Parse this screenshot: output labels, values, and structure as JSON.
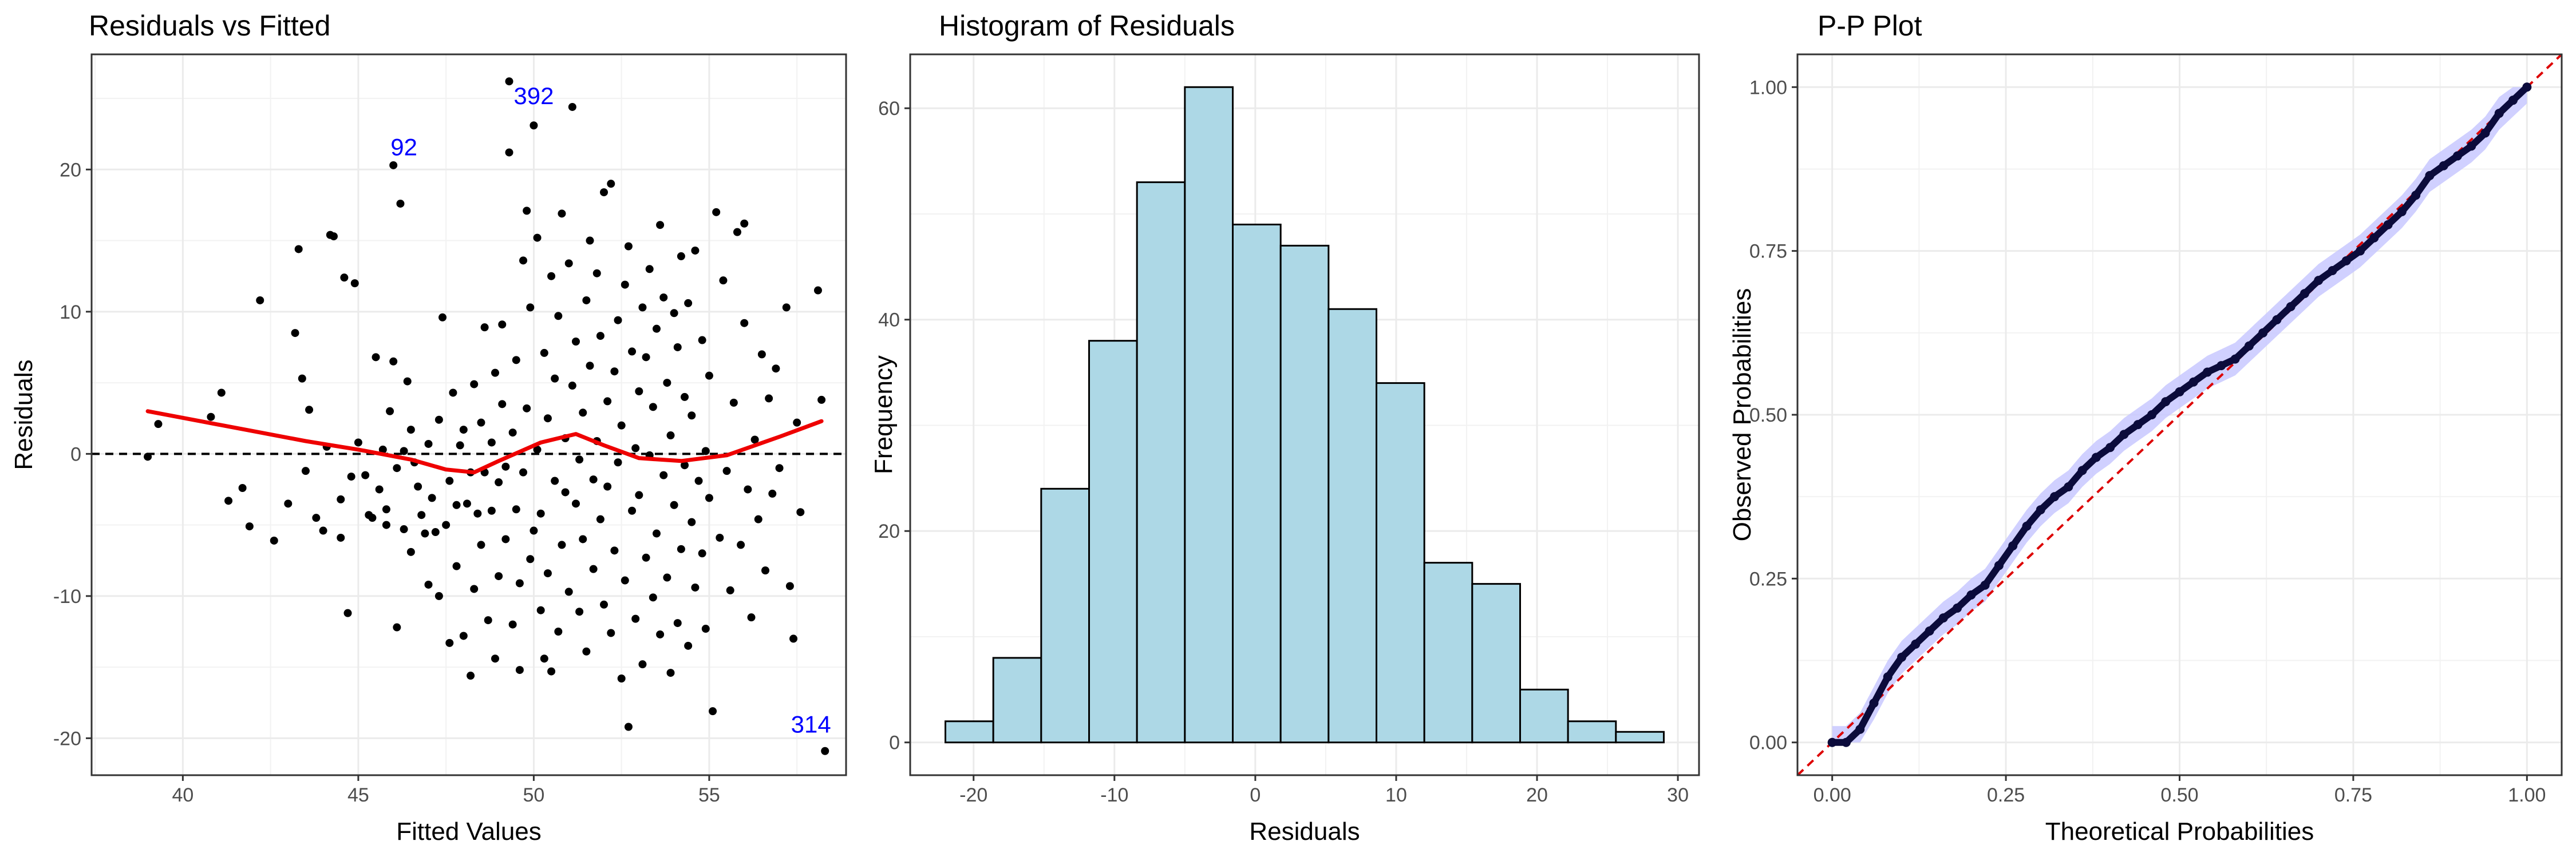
{
  "chart_data": [
    {
      "type": "scatter",
      "title": "Residuals vs Fitted",
      "xlabel": "Fitted Values",
      "ylabel": "Residuals",
      "xlim": [
        37.4,
        58.9
      ],
      "ylim": [
        -22.6,
        28.1
      ],
      "xticks": [
        40,
        45,
        50,
        55
      ],
      "yticks": [
        -20,
        -10,
        0,
        10,
        20
      ],
      "reference_line": {
        "y": 0,
        "style": "dashed",
        "color": "#000000"
      },
      "smooth": {
        "color": "#ee0000",
        "points": [
          [
            39.0,
            3.0
          ],
          [
            40.5,
            2.3
          ],
          [
            42.0,
            1.6
          ],
          [
            43.5,
            0.9
          ],
          [
            45.0,
            0.3
          ],
          [
            46.5,
            -0.4
          ],
          [
            47.5,
            -1.1
          ],
          [
            48.3,
            -1.3
          ],
          [
            49.0,
            -0.5
          ],
          [
            50.2,
            0.8
          ],
          [
            51.2,
            1.4
          ],
          [
            52.0,
            0.6
          ],
          [
            53.0,
            -0.3
          ],
          [
            54.2,
            -0.5
          ],
          [
            55.5,
            -0.1
          ],
          [
            57.0,
            1.2
          ],
          [
            58.2,
            2.3
          ]
        ]
      },
      "points": [
        [
          39.0,
          -0.2
        ],
        [
          39.3,
          2.1
        ],
        [
          40.8,
          2.6
        ],
        [
          41.1,
          4.3
        ],
        [
          41.3,
          -3.3
        ],
        [
          41.7,
          -2.4
        ],
        [
          41.9,
          -5.1
        ],
        [
          42.2,
          10.8
        ],
        [
          42.6,
          -6.1
        ],
        [
          43.0,
          -3.5
        ],
        [
          43.2,
          8.5
        ],
        [
          43.3,
          14.4
        ],
        [
          43.4,
          5.3
        ],
        [
          43.5,
          -1.2
        ],
        [
          43.6,
          3.1
        ],
        [
          43.8,
          -4.5
        ],
        [
          44.0,
          -5.4
        ],
        [
          44.1,
          0.5
        ],
        [
          44.2,
          15.4
        ],
        [
          44.3,
          15.3
        ],
        [
          44.5,
          -3.2
        ],
        [
          44.5,
          -5.9
        ],
        [
          44.6,
          12.4
        ],
        [
          44.7,
          -11.2
        ],
        [
          44.8,
          -1.6
        ],
        [
          44.9,
          12.0
        ],
        [
          45.0,
          0.8
        ],
        [
          45.2,
          -1.5
        ],
        [
          45.3,
          -4.3
        ],
        [
          45.4,
          -4.5
        ],
        [
          45.5,
          6.8
        ],
        [
          45.6,
          -2.5
        ],
        [
          45.7,
          0.3
        ],
        [
          45.8,
          -5.0
        ],
        [
          45.8,
          -3.9
        ],
        [
          45.9,
          3.0
        ],
        [
          46.0,
          20.3
        ],
        [
          46.0,
          6.5
        ],
        [
          46.1,
          -1.0
        ],
        [
          46.1,
          -12.2
        ],
        [
          46.2,
          17.6
        ],
        [
          46.3,
          -5.3
        ],
        [
          46.3,
          0.2
        ],
        [
          46.4,
          5.1
        ],
        [
          46.5,
          -6.9
        ],
        [
          46.5,
          1.7
        ],
        [
          46.6,
          -0.6
        ],
        [
          46.7,
          -2.3
        ],
        [
          46.8,
          -4.3
        ],
        [
          46.9,
          -5.6
        ],
        [
          47.0,
          0.7
        ],
        [
          47.0,
          -9.2
        ],
        [
          47.1,
          -3.1
        ],
        [
          47.2,
          -5.5
        ],
        [
          47.3,
          2.4
        ],
        [
          47.3,
          -10.0
        ],
        [
          47.4,
          9.6
        ],
        [
          47.5,
          -5.0
        ],
        [
          47.6,
          -13.3
        ],
        [
          47.6,
          -1.9
        ],
        [
          47.7,
          4.3
        ],
        [
          47.8,
          -3.6
        ],
        [
          47.8,
          -7.9
        ],
        [
          47.9,
          0.6
        ],
        [
          48.0,
          -12.8
        ],
        [
          48.0,
          1.7
        ],
        [
          48.1,
          -3.5
        ],
        [
          48.2,
          -1.3
        ],
        [
          48.2,
          -15.6
        ],
        [
          48.3,
          -9.5
        ],
        [
          48.3,
          4.9
        ],
        [
          48.4,
          -4.2
        ],
        [
          48.5,
          -6.4
        ],
        [
          48.5,
          2.2
        ],
        [
          48.6,
          8.9
        ],
        [
          48.6,
          -1.3
        ],
        [
          48.7,
          -11.7
        ],
        [
          48.8,
          -4.0
        ],
        [
          48.8,
          0.8
        ],
        [
          48.9,
          -14.4
        ],
        [
          48.9,
          5.7
        ],
        [
          49.0,
          -2.0
        ],
        [
          49.0,
          -8.6
        ],
        [
          49.1,
          3.5
        ],
        [
          49.1,
          9.1
        ],
        [
          49.2,
          -6.0
        ],
        [
          49.2,
          -0.9
        ],
        [
          49.3,
          26.2
        ],
        [
          49.3,
          21.2
        ],
        [
          49.4,
          -12.0
        ],
        [
          49.4,
          1.5
        ],
        [
          49.5,
          -3.9
        ],
        [
          49.5,
          6.6
        ],
        [
          49.6,
          -9.1
        ],
        [
          49.6,
          -15.2
        ],
        [
          49.7,
          13.6
        ],
        [
          49.7,
          -1.3
        ],
        [
          49.8,
          17.1
        ],
        [
          49.8,
          3.2
        ],
        [
          49.9,
          -7.4
        ],
        [
          49.9,
          10.3
        ],
        [
          50.0,
          23.1
        ],
        [
          50.0,
          -5.4
        ],
        [
          50.1,
          0.3
        ],
        [
          50.1,
          15.2
        ],
        [
          50.2,
          -11.0
        ],
        [
          50.2,
          -4.2
        ],
        [
          50.3,
          7.1
        ],
        [
          50.3,
          -14.4
        ],
        [
          50.4,
          2.5
        ],
        [
          50.4,
          -8.4
        ],
        [
          50.5,
          12.5
        ],
        [
          50.5,
          -15.3
        ],
        [
          50.6,
          -1.9
        ],
        [
          50.6,
          5.3
        ],
        [
          50.7,
          -12.5
        ],
        [
          50.7,
          9.7
        ],
        [
          50.8,
          16.9
        ],
        [
          50.8,
          -6.4
        ],
        [
          50.9,
          -2.7
        ],
        [
          50.9,
          1.1
        ],
        [
          51.0,
          13.4
        ],
        [
          51.0,
          -9.7
        ],
        [
          51.1,
          24.4
        ],
        [
          51.1,
          4.8
        ],
        [
          51.2,
          -3.5
        ],
        [
          51.2,
          7.9
        ],
        [
          51.3,
          -11.1
        ],
        [
          51.3,
          -0.4
        ],
        [
          51.4,
          2.9
        ],
        [
          51.4,
          -6.0
        ],
        [
          51.5,
          10.8
        ],
        [
          51.5,
          -13.9
        ],
        [
          51.6,
          15.0
        ],
        [
          51.6,
          6.2
        ],
        [
          51.7,
          -8.1
        ],
        [
          51.7,
          -1.8
        ],
        [
          51.8,
          0.9
        ],
        [
          51.8,
          12.7
        ],
        [
          51.9,
          -4.6
        ],
        [
          51.9,
          8.3
        ],
        [
          52.0,
          18.4
        ],
        [
          52.0,
          -10.6
        ],
        [
          52.1,
          3.7
        ],
        [
          52.1,
          -2.3
        ],
        [
          52.2,
          19.0
        ],
        [
          52.2,
          -12.6
        ],
        [
          52.3,
          5.8
        ],
        [
          52.3,
          -6.8
        ],
        [
          52.4,
          9.4
        ],
        [
          52.4,
          -0.6
        ],
        [
          52.5,
          -15.8
        ],
        [
          52.5,
          2.0
        ],
        [
          52.6,
          11.9
        ],
        [
          52.6,
          -8.9
        ],
        [
          52.7,
          -19.2
        ],
        [
          52.7,
          14.6
        ],
        [
          52.8,
          -4.0
        ],
        [
          52.8,
          7.2
        ],
        [
          52.9,
          -11.6
        ],
        [
          52.9,
          0.4
        ],
        [
          53.0,
          4.4
        ],
        [
          53.0,
          -2.9
        ],
        [
          53.1,
          -14.8
        ],
        [
          53.1,
          10.3
        ],
        [
          53.2,
          -7.3
        ],
        [
          53.2,
          6.8
        ],
        [
          53.3,
          13.0
        ],
        [
          53.3,
          -0.1
        ],
        [
          53.4,
          -10.1
        ],
        [
          53.4,
          3.3
        ],
        [
          53.5,
          8.8
        ],
        [
          53.5,
          -5.6
        ],
        [
          53.6,
          16.1
        ],
        [
          53.6,
          -12.7
        ],
        [
          53.7,
          -1.5
        ],
        [
          53.7,
          11.0
        ],
        [
          53.8,
          -8.7
        ],
        [
          53.8,
          5.0
        ],
        [
          53.9,
          -15.4
        ],
        [
          53.9,
          1.3
        ],
        [
          54.0,
          -3.6
        ],
        [
          54.0,
          9.9
        ],
        [
          54.1,
          -11.9
        ],
        [
          54.1,
          7.5
        ],
        [
          54.2,
          13.9
        ],
        [
          54.2,
          -6.7
        ],
        [
          54.3,
          -0.8
        ],
        [
          54.3,
          4.0
        ],
        [
          54.4,
          -13.5
        ],
        [
          54.4,
          10.6
        ],
        [
          54.5,
          -4.8
        ],
        [
          54.5,
          2.7
        ],
        [
          54.6,
          14.3
        ],
        [
          54.6,
          -9.4
        ],
        [
          54.7,
          -1.9
        ],
        [
          54.8,
          -7.0
        ],
        [
          54.8,
          8.0
        ],
        [
          54.9,
          0.2
        ],
        [
          54.9,
          -12.3
        ],
        [
          55.0,
          5.5
        ],
        [
          55.0,
          -3.1
        ],
        [
          55.1,
          -18.1
        ],
        [
          55.2,
          17.0
        ],
        [
          55.3,
          -5.9
        ],
        [
          55.4,
          12.2
        ],
        [
          55.5,
          -1.2
        ],
        [
          55.6,
          -9.6
        ],
        [
          55.7,
          3.6
        ],
        [
          55.8,
          15.6
        ],
        [
          55.9,
          -6.4
        ],
        [
          56.0,
          16.2
        ],
        [
          56.0,
          9.2
        ],
        [
          56.1,
          -2.5
        ],
        [
          56.2,
          -11.5
        ],
        [
          56.3,
          1.0
        ],
        [
          56.4,
          -4.6
        ],
        [
          56.5,
          7.0
        ],
        [
          56.6,
          -8.2
        ],
        [
          56.7,
          3.9
        ],
        [
          56.8,
          -2.8
        ],
        [
          56.9,
          6.0
        ],
        [
          57.0,
          -1.0
        ],
        [
          57.2,
          10.3
        ],
        [
          57.3,
          -9.3
        ],
        [
          57.4,
          -13.0
        ],
        [
          57.5,
          2.2
        ],
        [
          57.6,
          -4.1
        ],
        [
          58.1,
          11.5
        ],
        [
          58.2,
          3.8
        ],
        [
          58.3,
          -20.9
        ]
      ],
      "annotations": [
        {
          "label": "92",
          "x": 46.3,
          "y": 21.0
        },
        {
          "label": "392",
          "x": 50.0,
          "y": 24.6
        },
        {
          "label": "314",
          "x": 57.9,
          "y": -19.6
        }
      ]
    },
    {
      "type": "bar",
      "title": "Histogram of Residuals",
      "xlabel": "Residuals",
      "ylabel": "Frequency",
      "xlim": [
        -24.5,
        31.5
      ],
      "ylim": [
        -3.1,
        65.1
      ],
      "xticks": [
        -20,
        -10,
        0,
        10,
        20,
        30
      ],
      "yticks": [
        0,
        20,
        40,
        60
      ],
      "bin_start": -22.0,
      "bin_width": 3.4,
      "fill_color": "#add8e6",
      "values": [
        2,
        8,
        24,
        38,
        53,
        62,
        49,
        47,
        41,
        34,
        17,
        15,
        5,
        2,
        1
      ]
    },
    {
      "type": "line",
      "title": "P-P Plot",
      "xlabel": "Theoretical Probabilities",
      "ylabel": "Observed Probabilities",
      "xlim": [
        -0.05,
        1.05
      ],
      "ylim": [
        -0.05,
        1.05
      ],
      "xticks": [
        0.0,
        0.25,
        0.5,
        0.75,
        1.0
      ],
      "yticks": [
        0.0,
        0.25,
        0.5,
        0.75,
        1.0
      ],
      "reference_line": {
        "slope": 1,
        "intercept": 0,
        "style": "dashed",
        "color": "#dd0000"
      },
      "band_color": "#c8c8ff",
      "point_color": "#0b0b3b",
      "x": [
        0.0,
        0.02,
        0.04,
        0.06,
        0.08,
        0.1,
        0.12,
        0.14,
        0.16,
        0.18,
        0.2,
        0.22,
        0.24,
        0.26,
        0.28,
        0.3,
        0.32,
        0.34,
        0.36,
        0.38,
        0.4,
        0.42,
        0.44,
        0.46,
        0.48,
        0.5,
        0.52,
        0.54,
        0.56,
        0.58,
        0.6,
        0.62,
        0.64,
        0.66,
        0.68,
        0.7,
        0.72,
        0.74,
        0.76,
        0.78,
        0.8,
        0.82,
        0.84,
        0.86,
        0.88,
        0.9,
        0.92,
        0.94,
        0.96,
        0.98,
        1.0
      ],
      "y": [
        0.0,
        0.0,
        0.02,
        0.06,
        0.1,
        0.13,
        0.15,
        0.17,
        0.19,
        0.205,
        0.225,
        0.24,
        0.27,
        0.3,
        0.33,
        0.355,
        0.375,
        0.39,
        0.415,
        0.435,
        0.45,
        0.47,
        0.485,
        0.5,
        0.52,
        0.535,
        0.55,
        0.565,
        0.575,
        0.585,
        0.605,
        0.625,
        0.645,
        0.665,
        0.685,
        0.705,
        0.72,
        0.735,
        0.75,
        0.77,
        0.79,
        0.81,
        0.835,
        0.865,
        0.88,
        0.895,
        0.91,
        0.93,
        0.96,
        0.98,
        1.0
      ],
      "band_halfwidth": 0.025
    }
  ]
}
